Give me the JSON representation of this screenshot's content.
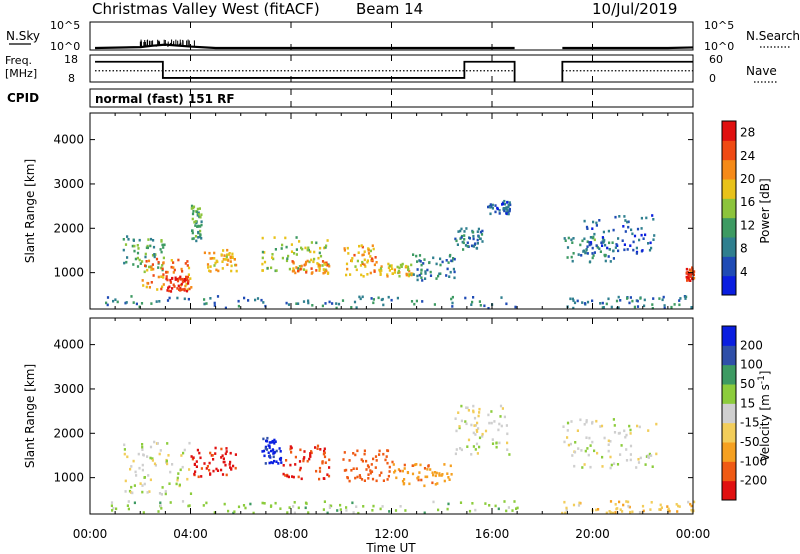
{
  "header": {
    "station": "Christmas Valley West (fitACF)",
    "beam": "Beam 14",
    "date": "10/Jul/2019"
  },
  "mini_panels": {
    "nsky_label": "N.Sky",
    "nsky_ticks": [
      "10^5",
      "10^0"
    ],
    "nsearch_label": "N.Search",
    "nsearch_ticks": [
      "10^5",
      "10^0"
    ],
    "freq_label": "Freq.",
    "freq_unit": "[MHz]",
    "freq_ticks": [
      "18",
      "8"
    ],
    "nave_label": "Nave",
    "nave_ticks": [
      "60",
      "0"
    ],
    "cpid_label": "CPID",
    "cpid_value": "normal (fast) 151 RF"
  },
  "x_axis": {
    "label": "Time UT",
    "ticks": [
      "00:00",
      "04:00",
      "08:00",
      "12:00",
      "16:00",
      "20:00",
      "00:00"
    ]
  },
  "colors": {
    "power": [
      "#0a1ee0",
      "#1f4bb5",
      "#2f7f8f",
      "#3d9a62",
      "#8cc43c",
      "#e8c21a",
      "#f58a18",
      "#ef4a14",
      "#e01010"
    ],
    "velocity": [
      "#e01010",
      "#ef5a14",
      "#f5a020",
      "#f2cd5a",
      "#cfcfcf",
      "#8ccc3c",
      "#3d9a62",
      "#2f4fa8",
      "#0a1ee0"
    ]
  },
  "chart_data": [
    {
      "type": "heatmap",
      "title": "Power",
      "ylabel": "Slant Range [km]",
      "xlabel": "",
      "xlim_hours": [
        0,
        24
      ],
      "ylim": [
        180,
        4600
      ],
      "y_ticks": [
        1000,
        2000,
        3000,
        4000
      ],
      "data_gap_hours": [
        17.0,
        18.75
      ],
      "colorbar": {
        "label": "Power [dB]",
        "ticks": [
          4,
          8,
          12,
          16,
          20,
          24,
          28
        ],
        "range": [
          0,
          30
        ]
      },
      "echo_regions": [
        {
          "t0": 1.3,
          "t1": 3.0,
          "r0": 1000,
          "r1": 1800,
          "value": 12
        },
        {
          "t0": 2.0,
          "t1": 4.0,
          "r0": 600,
          "r1": 1300,
          "value": 22
        },
        {
          "t0": 3.0,
          "t1": 3.9,
          "r0": 550,
          "r1": 900,
          "value": 27
        },
        {
          "t0": 4.5,
          "t1": 5.8,
          "r0": 1000,
          "r1": 1500,
          "value": 20
        },
        {
          "t0": 4.0,
          "t1": 4.4,
          "r0": 1700,
          "r1": 2500,
          "value": 12
        },
        {
          "t0": 6.8,
          "t1": 9.5,
          "r0": 1000,
          "r1": 1800,
          "value": 16
        },
        {
          "t0": 8.0,
          "t1": 9.5,
          "r0": 950,
          "r1": 1250,
          "value": 22
        },
        {
          "t0": 10.0,
          "t1": 11.5,
          "r0": 900,
          "r1": 1600,
          "value": 20
        },
        {
          "t0": 11.5,
          "t1": 12.8,
          "r0": 900,
          "r1": 1200,
          "value": 18
        },
        {
          "t0": 12.8,
          "t1": 14.5,
          "r0": 800,
          "r1": 1400,
          "value": 9
        },
        {
          "t0": 14.5,
          "t1": 15.6,
          "r0": 1500,
          "r1": 2000,
          "value": 8
        },
        {
          "t0": 15.8,
          "t1": 16.7,
          "r0": 2300,
          "r1": 2600,
          "value": 6
        },
        {
          "t0": 18.8,
          "t1": 21.0,
          "r0": 1200,
          "r1": 1800,
          "value": 10
        },
        {
          "t0": 19.5,
          "t1": 22.5,
          "r0": 1400,
          "r1": 2300,
          "value": 6
        },
        {
          "t0": 23.7,
          "t1": 24.0,
          "r0": 800,
          "r1": 1100,
          "value": 26
        },
        {
          "t0": 0.0,
          "t1": 17.0,
          "r0": 180,
          "r1": 450,
          "value": 8
        },
        {
          "t0": 18.75,
          "t1": 24.0,
          "r0": 180,
          "r1": 450,
          "value": 8
        }
      ]
    },
    {
      "type": "heatmap",
      "title": "Velocity",
      "ylabel": "Slant Range [km]",
      "xlabel": "Time UT",
      "xlim_hours": [
        0,
        24
      ],
      "ylim": [
        180,
        4600
      ],
      "y_ticks": [
        1000,
        2000,
        3000,
        4000
      ],
      "data_gap_hours": [
        17.0,
        18.75
      ],
      "colorbar": {
        "label": "Velocity [m s^-1]",
        "ticks": [
          200,
          100,
          50,
          15,
          -15,
          -50,
          -100,
          -200
        ],
        "range": [
          -250,
          250
        ]
      },
      "echo_regions": [
        {
          "t0": 1.3,
          "t1": 4.0,
          "r0": 600,
          "r1": 1800,
          "value": 0
        },
        {
          "t0": 4.0,
          "t1": 5.8,
          "r0": 1000,
          "r1": 1700,
          "value": -220
        },
        {
          "t0": 6.8,
          "t1": 7.6,
          "r0": 1300,
          "r1": 1900,
          "value": 220
        },
        {
          "t0": 7.6,
          "t1": 9.5,
          "r0": 950,
          "r1": 1700,
          "value": -200
        },
        {
          "t0": 10.0,
          "t1": 12.0,
          "r0": 900,
          "r1": 1600,
          "value": -150
        },
        {
          "t0": 12.0,
          "t1": 14.5,
          "r0": 800,
          "r1": 1300,
          "value": -80
        },
        {
          "t0": 14.5,
          "t1": 16.7,
          "r0": 1500,
          "r1": 2600,
          "value": 0
        },
        {
          "t0": 18.8,
          "t1": 22.5,
          "r0": 1200,
          "r1": 2300,
          "value": 0
        },
        {
          "t0": 0.0,
          "t1": 17.0,
          "r0": 180,
          "r1": 450,
          "value": 30
        },
        {
          "t0": 18.75,
          "t1": 24.0,
          "r0": 180,
          "r1": 450,
          "value": -40
        }
      ]
    },
    {
      "type": "line",
      "title": "",
      "series": [
        {
          "name": "N.Sky",
          "x": [
            0.2,
            2.0,
            2.5,
            3.0,
            4.0,
            5.0,
            8.0,
            12.0,
            16.9,
            18.8,
            23.0,
            24.0
          ],
          "y": [
            1,
            1.5,
            3,
            5,
            2,
            1,
            1,
            1,
            1,
            1,
            1,
            1.3
          ]
        }
      ]
    },
    {
      "type": "line",
      "title": "",
      "series": [
        {
          "name": "Freq.",
          "x": [
            0.2,
            2.9,
            2.9,
            14.9,
            14.9,
            16.9,
            18.8,
            24.0
          ],
          "y": [
            15.5,
            15.5,
            9.5,
            9.5,
            15.5,
            15.5,
            15.5,
            15.5
          ]
        },
        {
          "name": "Nave",
          "x": [
            0.2,
            2.9,
            14.9,
            16.9,
            18.8,
            24.0
          ],
          "y": [
            25,
            25,
            25,
            25,
            25,
            25
          ]
        }
      ]
    }
  ]
}
